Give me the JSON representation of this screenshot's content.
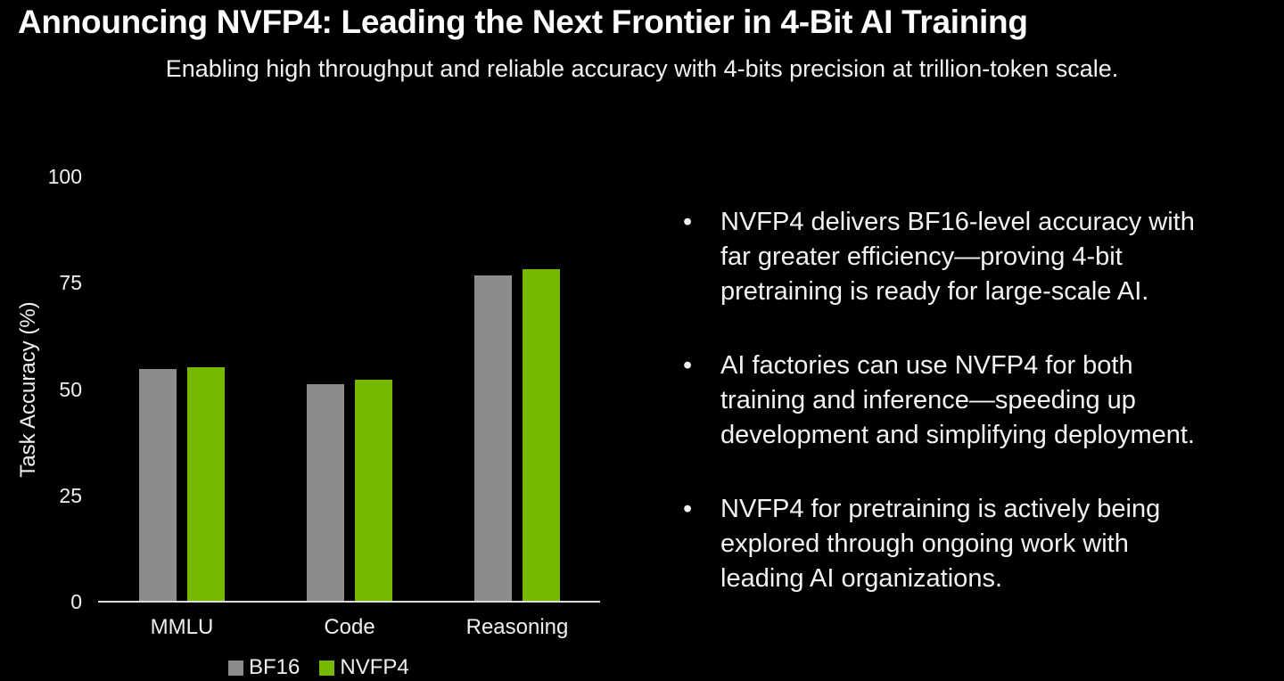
{
  "slide": {
    "title": "Announcing NVFP4: Leading the Next Frontier in 4-Bit AI Training",
    "subtitle": "Enabling high throughput and reliable accuracy with 4-bits precision at trillion-token scale."
  },
  "bullets": {
    "marker": "•",
    "items": [
      {
        "text": "NVFP4 delivers BF16-level accuracy with\nfar greater efficiency—proving 4-bit\npretraining is ready for large-scale AI."
      },
      {
        "text": "AI factories can use NVFP4 for both\ntraining and inference—speeding up\ndevelopment and simplifying deployment."
      },
      {
        "text": "NVFP4 for pretraining is actively being\nexplored through ongoing work with\nleading AI organizations."
      }
    ]
  },
  "chart_data": {
    "type": "bar",
    "title": "",
    "categories": [
      "MMLU",
      "Code",
      "Reasoning"
    ],
    "series": [
      {
        "name": "BF16",
        "color": "#8c8c8c",
        "values": [
          54.8,
          51.1,
          76.8
        ]
      },
      {
        "name": "NVFP4",
        "color": "#76b900",
        "values": [
          55.1,
          52.2,
          78.3
        ]
      }
    ],
    "xlabel": "",
    "ylabel": "Task Accuracy (%)",
    "ylim": [
      0,
      100
    ],
    "yticks": [
      0,
      25,
      50,
      75,
      100
    ],
    "grid": false,
    "legend_position": "bottom"
  },
  "colors": {
    "background": "#000000",
    "text": "#f2f2f2",
    "axis_line": "#dcdcdc",
    "bar_gray": "#8c8c8c",
    "nvidia_green": "#76b900"
  }
}
